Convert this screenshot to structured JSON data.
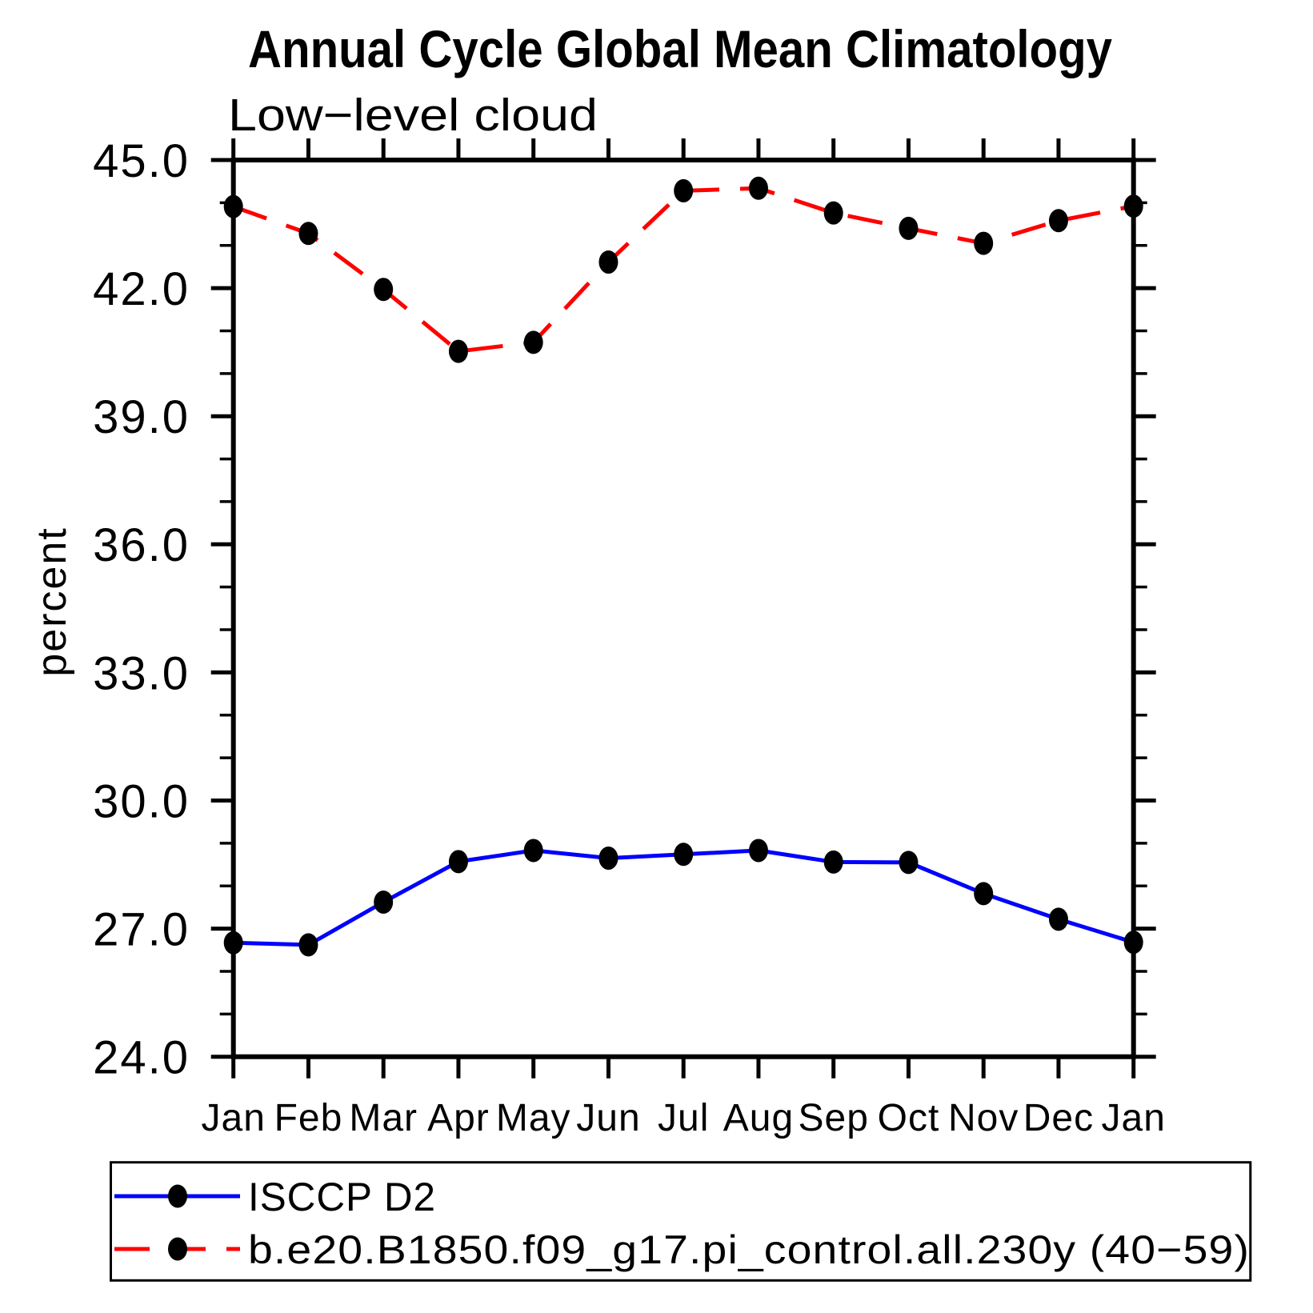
{
  "title": "Annual Cycle Global Mean Climatology",
  "subtitle": "Low−level cloud",
  "ylabel": "percent",
  "chart_data": {
    "type": "line",
    "categories": [
      "Jan",
      "Feb",
      "Mar",
      "Apr",
      "May",
      "Jun",
      "Jul",
      "Aug",
      "Sep",
      "Oct",
      "Nov",
      "Dec",
      "Jan"
    ],
    "series": [
      {
        "name": "ISCCP D2",
        "color": "#0000ff",
        "line_style": "solid",
        "marker": "filled-circle",
        "marker_color": "#000000",
        "values": [
          26.67,
          26.62,
          27.62,
          28.57,
          28.83,
          28.65,
          28.74,
          28.83,
          28.56,
          28.55,
          27.82,
          27.22,
          26.68
        ]
      },
      {
        "name": "b.e20.B1850.f09_g17.pi_control.all.230y (40−59)",
        "color": "#ff0000",
        "line_style": "dashed",
        "marker": "filled-circle",
        "marker_color": "#000000",
        "values": [
          43.91,
          43.28,
          41.97,
          40.52,
          40.73,
          42.61,
          44.28,
          44.34,
          43.76,
          43.4,
          43.05,
          43.58,
          43.92
        ]
      }
    ],
    "xlabel": "",
    "ylabel": "percent",
    "ylim": [
      24.0,
      45.0
    ],
    "ytick_major_interval": 3.0,
    "ytick_minor_interval": 1.0,
    "ytick_label_format": "one-decimal",
    "ytick_labels": [
      "24.0",
      "27.0",
      "30.0",
      "33.0",
      "36.0",
      "39.0",
      "42.0",
      "45.0"
    ],
    "grid": false,
    "legend_position": "bottom",
    "axis_color": "#000000",
    "background_color": "#ffffff"
  }
}
